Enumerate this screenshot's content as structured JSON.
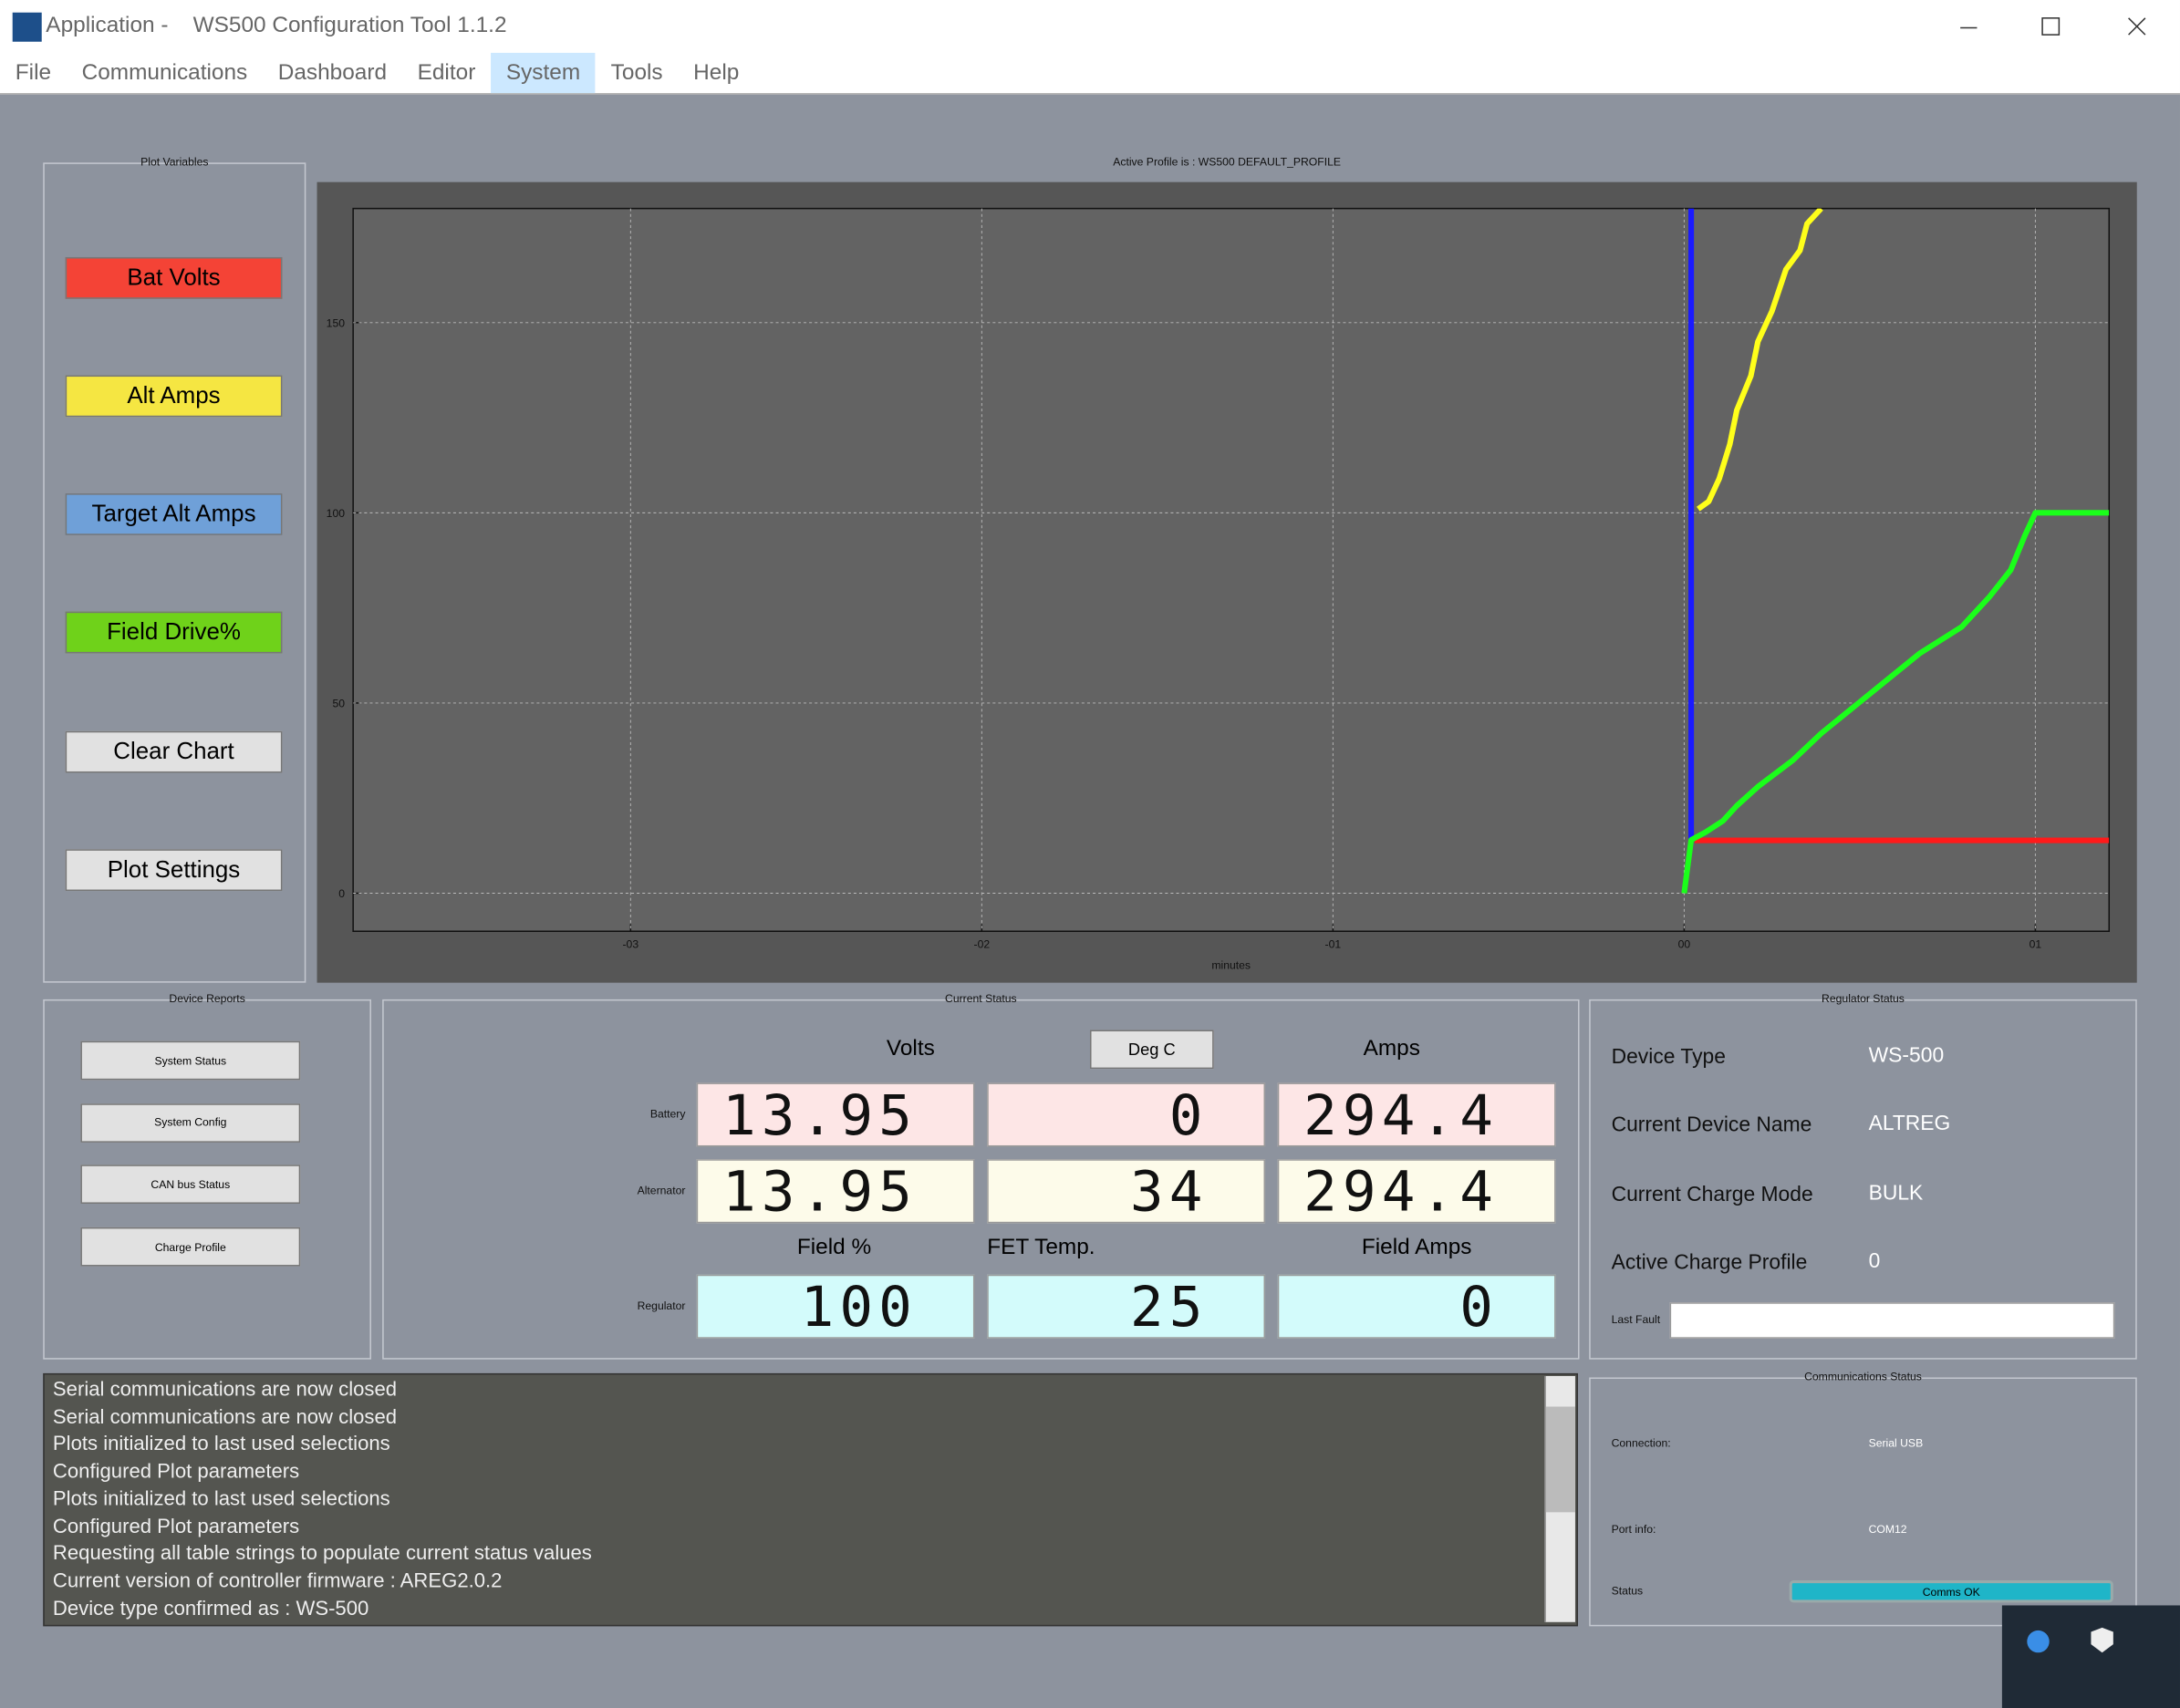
{
  "window": {
    "title": "Application -    WS500 Configuration Tool 1.1.2",
    "menu": [
      "File",
      "Communications",
      "Dashboard",
      "Editor",
      "System",
      "Tools",
      "Help"
    ]
  },
  "plot_variables": {
    "title": "Plot Variables",
    "buttons": [
      "Clear Chart",
      "Plot Settings"
    ]
  },
  "chart_data": {
    "type": "line",
    "title": "Active Profile is : WS500 DEFAULT_PROFILE",
    "x_label": "minutes",
    "xlim": [
      -3.79,
      1.21
    ],
    "xticks": [
      {
        "value": -3,
        "label": "-03"
      },
      {
        "value": -2,
        "label": "-02"
      },
      {
        "value": -1,
        "label": "-01"
      },
      {
        "value": 0,
        "label": "00"
      },
      {
        "value": 1,
        "label": "01"
      }
    ],
    "ylim": [
      -10,
      180
    ],
    "yticks": [
      0,
      50,
      100,
      150
    ],
    "grid": true,
    "series": [
      {
        "name": "Bat Volts",
        "color": "#ff1a1a",
        "button_color": "#f44336",
        "x": [
          0.03,
          1.21
        ],
        "values": [
          13.9,
          13.9
        ]
      },
      {
        "name": "Alt Amps",
        "color": "#ffff1a",
        "button_color": "#f5e642",
        "x": [
          0.04,
          0.07,
          0.1,
          0.13,
          0.15,
          0.19,
          0.21,
          0.25,
          0.29,
          0.33,
          0.35,
          0.39
        ],
        "values": [
          101,
          103,
          109,
          118,
          127,
          136,
          145,
          153,
          164,
          169,
          176,
          180
        ]
      },
      {
        "name": "Target Alt Amps",
        "color": "#1a1aff",
        "button_color": "#6fa0d8",
        "x": [
          0.02,
          0.02
        ],
        "values": [
          14,
          180
        ]
      },
      {
        "name": "Field Drive%",
        "color": "#1aff1a",
        "button_color": "#6fd21a",
        "x": [
          0,
          0.02,
          0.06,
          0.11,
          0.15,
          0.21,
          0.31,
          0.39,
          0.47,
          0.55,
          0.67,
          0.79,
          0.87,
          0.93,
          0.97,
          1.0,
          1.21
        ],
        "values": [
          0,
          14,
          16,
          19,
          23,
          28,
          35,
          42,
          48,
          54,
          63,
          70,
          78,
          85,
          94,
          100,
          100
        ]
      }
    ]
  },
  "device_reports": {
    "title": "Device Reports",
    "buttons": [
      "System Status",
      "System Config",
      "CAN bus Status",
      "Charge Profile"
    ]
  },
  "current_status": {
    "title": "Current Status",
    "headers": [
      "Volts",
      "Deg C",
      "Amps"
    ],
    "regulator_headers": [
      "Field %",
      "FET Temp.",
      "Field Amps"
    ],
    "rows": [
      {
        "label": "Battery",
        "values": [
          "13.95",
          "0",
          "294.4"
        ]
      },
      {
        "label": "Alternator",
        "values": [
          "13.95",
          "34",
          "294.4"
        ]
      },
      {
        "label": "Regulator",
        "values": [
          "100",
          "25",
          "0"
        ]
      }
    ]
  },
  "regulator_status": {
    "title": "Regulator Status",
    "fields": [
      {
        "label": "Device Type",
        "value": "WS-500"
      },
      {
        "label": "Current Device Name",
        "value": "ALTREG"
      },
      {
        "label": "Current Charge Mode",
        "value": "BULK"
      },
      {
        "label": "Active Charge Profile",
        "value": "0"
      }
    ],
    "last_fault_label": "Last Fault"
  },
  "log": {
    "lines": [
      "Serial communications are now closed",
      "Serial communications are now closed",
      "Plots initialized to last used selections",
      "Configured Plot parameters",
      "Plots initialized to last used selections",
      "Configured Plot parameters",
      "Requesting all table strings to populate current status values",
      "Current version of controller firmware : AREG2.0.2",
      "Device type confirmed as : WS-500"
    ]
  },
  "communications_status": {
    "title": "Communications Status",
    "fields": [
      {
        "label": "Connection:",
        "value": "Serial USB"
      },
      {
        "label": "Port info:",
        "value": "COM12"
      },
      {
        "label": "Status",
        "value": "Comms OK"
      }
    ]
  }
}
